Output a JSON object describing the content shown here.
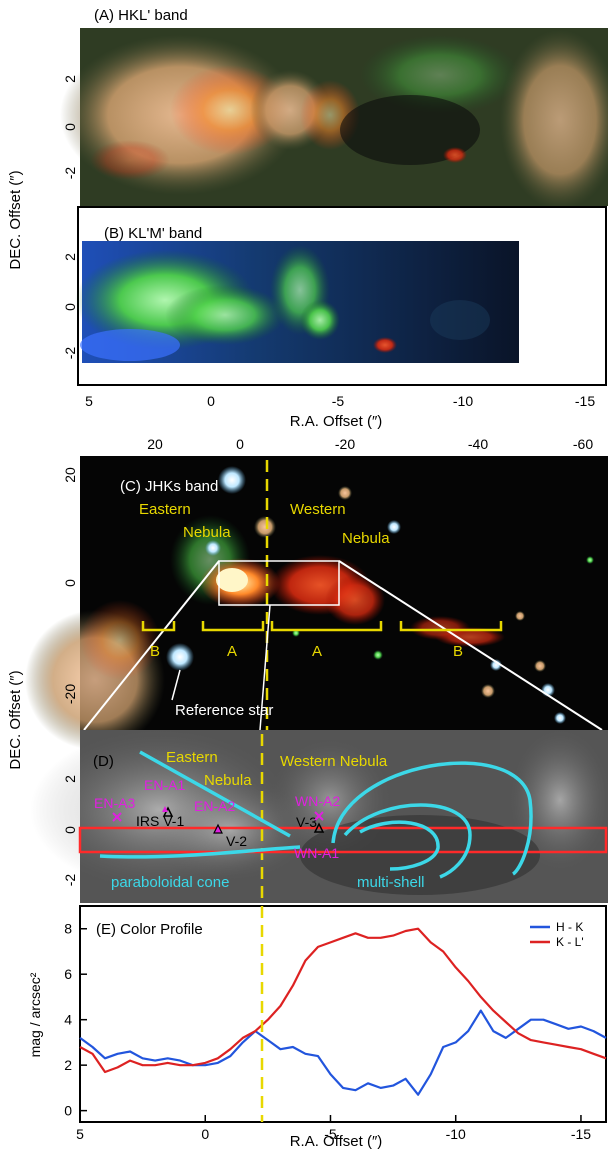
{
  "panels": {
    "a": {
      "label": "(A) HKL' band"
    },
    "b": {
      "label": "(B) KL'M' band"
    },
    "c": {
      "label": "(C) JHKs band"
    },
    "d": {
      "label": "(D)"
    },
    "e": {
      "label": "(E)  Color Profile"
    }
  },
  "axes": {
    "dec_label": "DEC. Offset (″)",
    "ra_label": "R.A. Offset (″)",
    "top_ticks": [
      "5",
      "0",
      "-5",
      "-10",
      "-15"
    ],
    "dec_ticks": [
      "2",
      "0",
      "-2"
    ],
    "c_top_ticks": [
      "20",
      "0",
      "-20",
      "-40",
      "-60"
    ],
    "c_left_ticks": [
      "20",
      "0",
      "-20"
    ],
    "e_left_ticks": [
      "8",
      "6",
      "4",
      "2",
      "0"
    ],
    "e_ylabel": "mag / arcsec²"
  },
  "c_labels": {
    "eastern": "Eastern",
    "nebula1": "Nebula",
    "western": "Western",
    "nebula2": "Nebula",
    "b1": "B",
    "a1": "A",
    "a2": "A",
    "b2": "B",
    "ref_star": "Reference star"
  },
  "d_labels": {
    "eastern": "Eastern",
    "nebula": "Nebula",
    "western_nebula": "Western Nebula",
    "en_a1": "EN-A1",
    "en_a2": "EN-A2",
    "en_a3": "EN-A3",
    "wn_a1": "WN-A1",
    "wn_a2": "WN-A2",
    "irs_v1": "IRS V-1",
    "v2": "V-2",
    "v3": "V-3",
    "cone": "paraboloidal cone",
    "shell": "multi-shell"
  },
  "chart_data": {
    "type": "line",
    "title": "(E)  Color Profile",
    "xlabel": "R.A. Offset (″)",
    "ylabel": "mag / arcsec²",
    "xlim": [
      5,
      -16
    ],
    "ylim": [
      -0.5,
      9
    ],
    "xticks": [
      5,
      0,
      -5,
      -10,
      -15
    ],
    "yticks": [
      0,
      2,
      4,
      6,
      8
    ],
    "legend_position": "top-right",
    "series": [
      {
        "name": "H - K",
        "color": "#2255dd",
        "x": [
          5,
          4.5,
          4,
          3.5,
          3,
          2.5,
          2,
          1.5,
          1,
          0.5,
          0,
          -0.5,
          -1,
          -1.5,
          -2,
          -2.5,
          -3,
          -3.5,
          -4,
          -4.5,
          -5,
          -5.5,
          -6,
          -6.5,
          -7,
          -7.5,
          -8,
          -8.5,
          -9,
          -9.5,
          -10,
          -10.5,
          -11,
          -11.5,
          -12,
          -12.5,
          -13,
          -13.5,
          -14,
          -14.5,
          -15,
          -15.5,
          -16
        ],
        "y": [
          3.2,
          2.8,
          2.3,
          2.5,
          2.6,
          2.3,
          2.2,
          2.3,
          2.2,
          2.0,
          2.0,
          2.1,
          2.4,
          3.0,
          3.5,
          3.1,
          2.7,
          2.8,
          2.5,
          2.4,
          1.6,
          1.0,
          0.9,
          1.2,
          1.0,
          1.1,
          1.4,
          0.7,
          1.6,
          2.8,
          3.0,
          3.5,
          4.4,
          3.5,
          3.2,
          3.6,
          4.0,
          4.0,
          3.8,
          3.6,
          3.7,
          3.5,
          3.2
        ]
      },
      {
        "name": "K - L'",
        "color": "#dd2222",
        "x": [
          5,
          4.5,
          4,
          3.5,
          3,
          2.5,
          2,
          1.5,
          1,
          0.5,
          0,
          -0.5,
          -1,
          -1.5,
          -2,
          -2.5,
          -3,
          -3.5,
          -4,
          -4.5,
          -5,
          -5.5,
          -6,
          -6.5,
          -7,
          -7.5,
          -8,
          -8.5,
          -9,
          -9.5,
          -10,
          -10.5,
          -11,
          -11.5,
          -12,
          -12.5,
          -13,
          -13.5,
          -14,
          -14.5,
          -15,
          -15.5,
          -16
        ],
        "y": [
          2.8,
          2.5,
          1.7,
          1.9,
          2.2,
          2.0,
          2.0,
          2.1,
          2.0,
          2.0,
          2.1,
          2.3,
          2.7,
          3.2,
          3.5,
          4.0,
          4.6,
          5.5,
          6.6,
          7.2,
          7.4,
          7.6,
          7.8,
          7.6,
          7.6,
          7.7,
          7.9,
          8.0,
          7.4,
          7.0,
          6.3,
          5.7,
          5.0,
          4.4,
          3.9,
          3.4,
          3.1,
          3.0,
          2.9,
          2.8,
          2.7,
          2.5,
          2.3
        ]
      }
    ]
  }
}
